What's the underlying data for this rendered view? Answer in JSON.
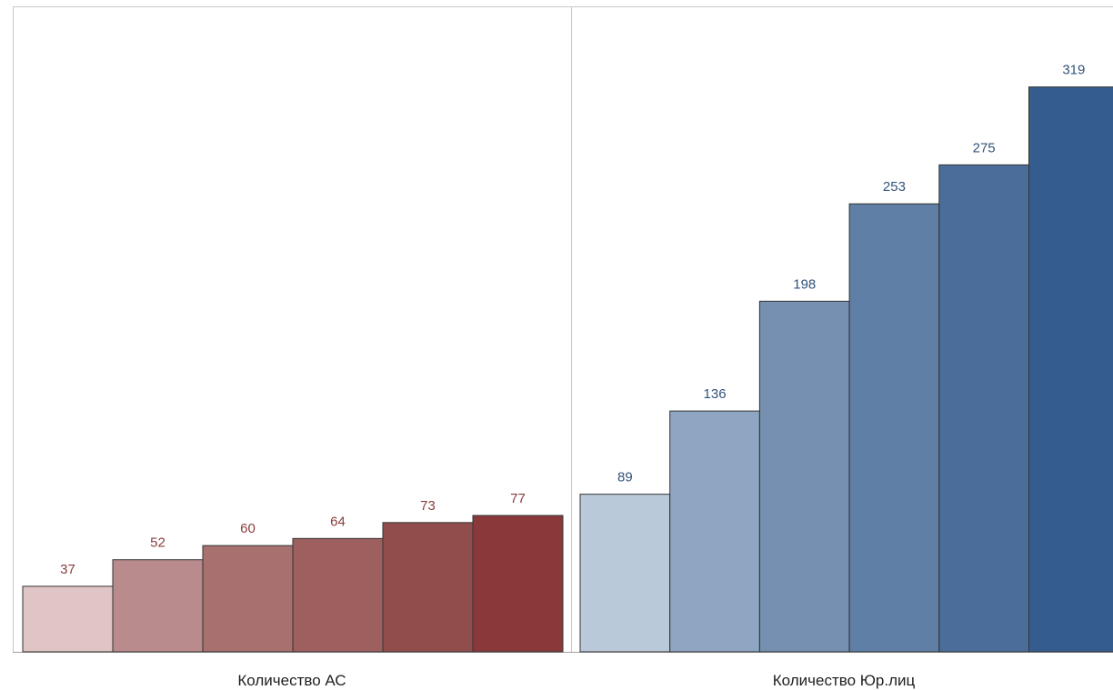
{
  "chart_data": [
    {
      "type": "bar",
      "xlabel": "Количество АС",
      "values": [
        37,
        52,
        60,
        64,
        73,
        77
      ],
      "colors": [
        "#dfc5c6",
        "#b98b8c",
        "#a87170",
        "#9d605f",
        "#914d4c",
        "#89393a"
      ],
      "label_color": "#8a3c3c",
      "ylim": [
        0,
        345
      ]
    },
    {
      "type": "bar",
      "xlabel": "Количество Юр.лиц",
      "values": [
        89,
        136,
        198,
        253,
        275,
        319
      ],
      "colors": [
        "#b9c9d9",
        "#8ea6c1",
        "#7590b0",
        "#5f7fa6",
        "#4a6d9a",
        "#345d8e"
      ],
      "label_color": "#33527a",
      "ylim": [
        0,
        345
      ]
    }
  ]
}
